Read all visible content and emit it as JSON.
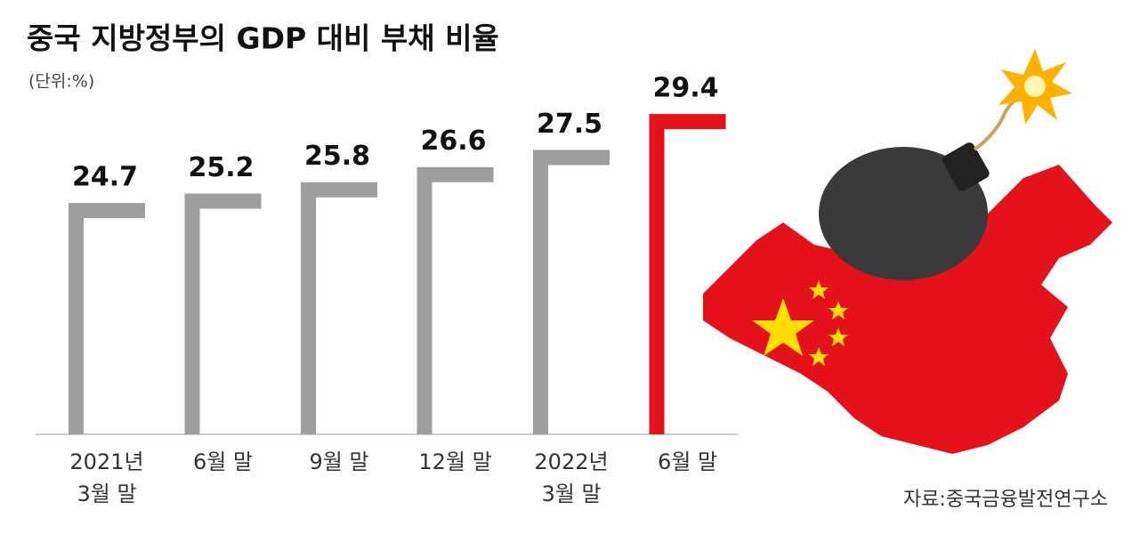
{
  "chart_data": {
    "type": "bar",
    "title": "중국 지방정부의 GDP 대비 부채 비율",
    "subtitle": "(단위:%)",
    "source": "자료:중국금융발전연구소",
    "categories": [
      [
        "2021년",
        "3월 말"
      ],
      [
        "6월 말"
      ],
      [
        "9월 말"
      ],
      [
        "12월 말"
      ],
      [
        "2022년",
        "3월 말"
      ],
      [
        "6월 말"
      ]
    ],
    "values": [
      24.7,
      25.2,
      25.8,
      26.6,
      27.5,
      29.4
    ],
    "colors": [
      "#9e9e9e",
      "#9e9e9e",
      "#9e9e9e",
      "#9e9e9e",
      "#9e9e9e",
      "#e5121c"
    ],
    "ylim": [
      12.5,
      31
    ]
  }
}
